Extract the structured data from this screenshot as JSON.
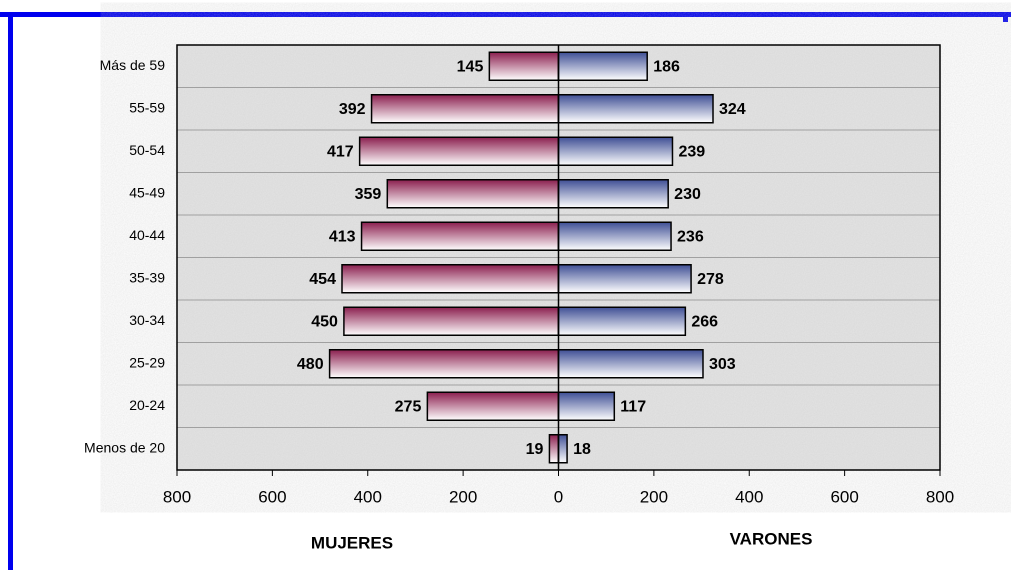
{
  "chart_data": {
    "type": "pyramid",
    "categories": [
      "Más de 59",
      "55-59",
      "50-54",
      "45-49",
      "40-44",
      "35-39",
      "30-34",
      "25-29",
      "20-24",
      "Menos de 20"
    ],
    "series": [
      {
        "name": "MUJERES",
        "color": "#8b1f4f",
        "values": [
          -145,
          -392,
          -417,
          -359,
          -413,
          -454,
          -450,
          -480,
          -275,
          -19
        ],
        "value_labels": [
          "145",
          "392",
          "417",
          "359",
          "413",
          "454",
          "450",
          "480",
          "275",
          "19"
        ]
      },
      {
        "name": "VARONES",
        "color": "#3f4f95",
        "values": [
          186,
          324,
          239,
          230,
          236,
          278,
          266,
          303,
          117,
          18
        ]
      }
    ],
    "xlim": [
      -800,
      800
    ],
    "xticks": [
      {
        "value": -800,
        "label": "800"
      },
      {
        "value": -600,
        "label": "600"
      },
      {
        "value": -400,
        "label": "400"
      },
      {
        "value": -200,
        "label": "200"
      },
      0,
      200,
      400,
      600,
      800
    ],
    "grid": true
  }
}
